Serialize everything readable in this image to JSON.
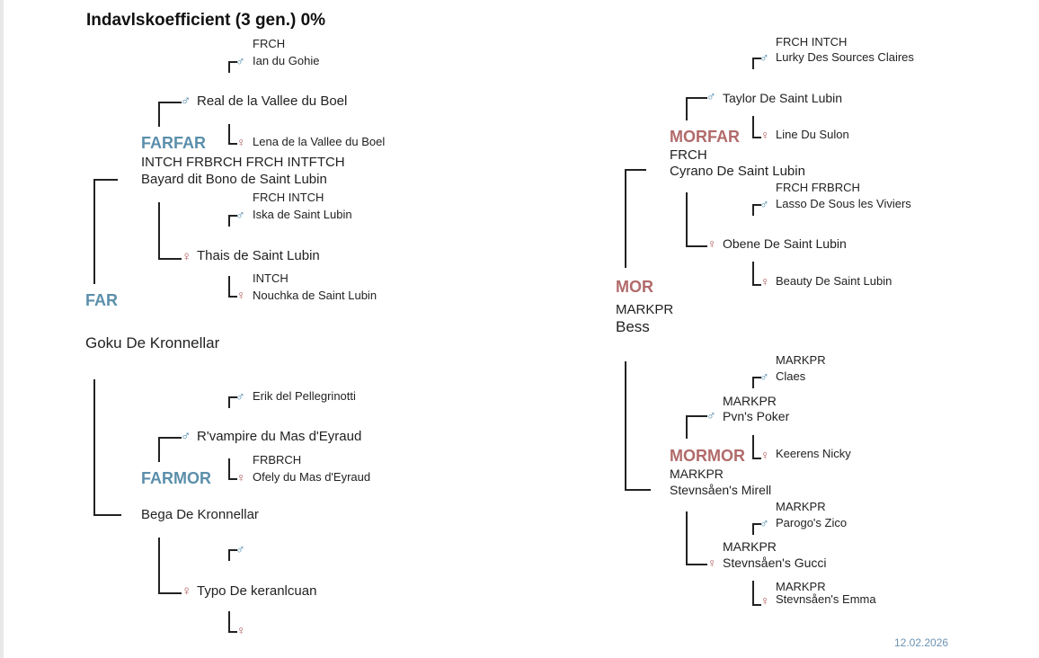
{
  "header": {
    "title": "Indavlskoefficient (3 gen.) 0%"
  },
  "subject": {
    "name": "Goku De Kronnellar"
  },
  "footer": {
    "date": "12.02.2026"
  },
  "symbols": {
    "male": "♂",
    "female": "♀"
  },
  "colors": {
    "male": "#5b8fab",
    "female": "#b26a6a"
  },
  "pedigree": {
    "far": {
      "role": "FAR",
      "farfar": {
        "role": "FARFAR",
        "titles": "INTCH FRBRCH FRCH INTFTCH",
        "name": "Bayard dit Bono de Saint Lubin",
        "father": {
          "name": "Real de la Vallee du Boel",
          "father": {
            "titles": "FRCH",
            "name": "Ian du Gohie"
          },
          "mother": {
            "titles": "",
            "name": "Lena de la Vallee du Boel"
          }
        },
        "mother": {
          "name": "Thais de Saint Lubin",
          "father": {
            "titles": "FRCH INTCH",
            "name": "Iska de Saint Lubin"
          },
          "mother": {
            "titles": "INTCH",
            "name": "Nouchka de Saint Lubin"
          }
        }
      },
      "farmor": {
        "role": "FARMOR",
        "titles": "",
        "name": "Bega De Kronnellar",
        "father": {
          "name": "R'vampire du Mas d'Eyraud",
          "father": {
            "titles": "",
            "name": "Erik del Pellegrinotti"
          },
          "mother": {
            "titles": "FRBRCH",
            "name": "Ofely du Mas d'Eyraud"
          }
        },
        "mother": {
          "name": "Typo De keranlcuan",
          "father": {
            "titles": "",
            "name": ""
          },
          "mother": {
            "titles": "",
            "name": ""
          }
        }
      }
    },
    "mor": {
      "role": "MOR",
      "titles": "MARKPR",
      "name": "Bess",
      "morfar": {
        "role": "MORFAR",
        "titles": "FRCH",
        "name": "Cyrano De Saint Lubin",
        "father": {
          "titles": "",
          "name": "Taylor De Saint Lubin",
          "father": {
            "titles": "FRCH INTCH",
            "name": "Lurky Des Sources Claires"
          },
          "mother": {
            "titles": "",
            "name": "Line Du Sulon"
          }
        },
        "mother": {
          "titles": "",
          "name": "Obene De Saint Lubin",
          "father": {
            "titles": "FRCH FRBRCH",
            "name": "Lasso De Sous les Viviers"
          },
          "mother": {
            "titles": "",
            "name": "Beauty De Saint Lubin"
          }
        }
      },
      "mormor": {
        "role": "MORMOR",
        "titles": "MARKPR",
        "name": "Stevnsåen's Mirell",
        "father": {
          "titles": "MARKPR",
          "name": "Pvn's Poker",
          "father": {
            "titles": "MARKPR",
            "name": "Claes"
          },
          "mother": {
            "titles": "",
            "name": "Keerens Nicky"
          }
        },
        "mother": {
          "titles": "MARKPR",
          "name": "Stevnsåen's Gucci",
          "father": {
            "titles": "MARKPR",
            "name": "Parogo's Zico"
          },
          "mother": {
            "titles": "MARKPR",
            "name": "Stevnsåen's Emma"
          }
        }
      }
    }
  }
}
